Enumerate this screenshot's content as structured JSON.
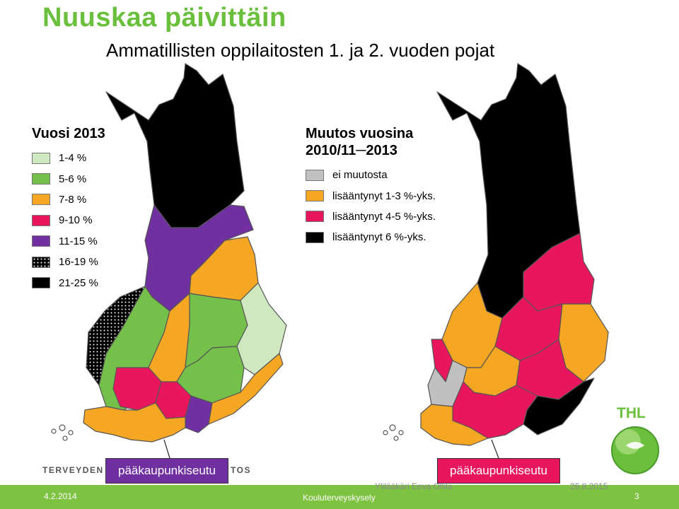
{
  "header": {
    "title": "Nuuskaa päivittäin",
    "subtitle": "Ammatillisten oppilaitosten 1. ja 2. vuoden pojat"
  },
  "legend_left": {
    "title": "Vuosi 2013",
    "items": [
      {
        "label": "1-4 %",
        "color": "#cfe8c0"
      },
      {
        "label": "5-6 %",
        "color": "#74c04a"
      },
      {
        "label": "7-8 %",
        "color": "#f5a623"
      },
      {
        "label": "9-10 %",
        "color": "#e8175d"
      },
      {
        "label": "11-15 %",
        "color": "#7030a0"
      },
      {
        "label": "16-19 %",
        "color": "#000000",
        "pattern": "dotted"
      },
      {
        "label": "21-25 %",
        "color": "#000000"
      }
    ]
  },
  "legend_right": {
    "title_line1": "Muutos vuosina",
    "title_line2": "2010/11─2013",
    "items": [
      {
        "label": "ei muutosta",
        "color": "#c0c0c0"
      },
      {
        "label": "lisääntynyt 1-3 %-yks.",
        "color": "#f5a623"
      },
      {
        "label": "lisääntynyt 4-5 %-yks.",
        "color": "#e8175d"
      },
      {
        "label": "lisääntynyt 6 %-yks.",
        "color": "#000000"
      }
    ]
  },
  "callouts": {
    "left": "pääkaupunkiseutu",
    "right": "pääkaupunkiseutu"
  },
  "branding": {
    "org_left": "TERVEYDEN",
    "org_right": "TOS",
    "thl": "THL"
  },
  "footer": {
    "date": "4.2.2014",
    "center": "Kouluterveyskysely",
    "page": "3",
    "overlay_author": "Ylilääkäri Eeva Ollila",
    "overlay_date": "26.8.2015"
  },
  "colors": {
    "accent_green": "#6abf3d",
    "footer_green": "#7ec242"
  }
}
